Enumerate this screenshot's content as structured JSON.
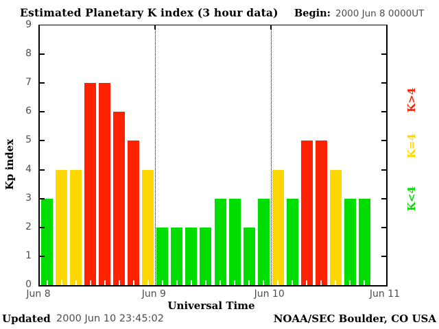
{
  "header": {
    "title": "Estimated Planetary K index (3 hour data)",
    "begin_label": "Begin:",
    "begin_value": "2000 Jun 8 0000UT"
  },
  "footer": {
    "updated_label": "Updated",
    "updated_value": "2000 Jun 10 23:45:02",
    "credit": "NOAA/SEC Boulder, CO USA"
  },
  "chart_data": {
    "type": "bar",
    "title": "Estimated Planetary K index (3 hour data)",
    "xlabel": "Universal Time",
    "ylabel": "Kp index",
    "ylim": [
      0,
      9
    ],
    "yticks": [
      0,
      1,
      2,
      3,
      4,
      5,
      6,
      7,
      8,
      9
    ],
    "x_day_labels": [
      "Jun 8",
      "Jun 9",
      "Jun 10",
      "Jun 11"
    ],
    "slots_per_day": 8,
    "days": 3,
    "hours_per_slot": 3,
    "values": [
      3,
      4,
      4,
      7,
      7,
      6,
      5,
      4,
      2,
      2,
      2,
      2,
      3,
      3,
      2,
      3,
      4,
      3,
      5,
      5,
      4,
      3,
      3
    ],
    "colors": {
      "k_below_4": "#00dd00",
      "k_equal_4": "#ffd700",
      "k_above_4": "#ff2200",
      "axis": "#000000",
      "tick_label": "#4d4d4d",
      "background": "#ffffff"
    },
    "legend": [
      {
        "label": "K>4",
        "rule": "above_4",
        "color": "#ff2200"
      },
      {
        "label": "K=4",
        "rule": "equal_4",
        "color": "#ffd700"
      },
      {
        "label": "K<4",
        "rule": "below_4",
        "color": "#00dd00"
      }
    ],
    "grid": "dotted vertical lines at day boundaries, ticks inward on left/right axes, white minor ticks at bar bases"
  }
}
